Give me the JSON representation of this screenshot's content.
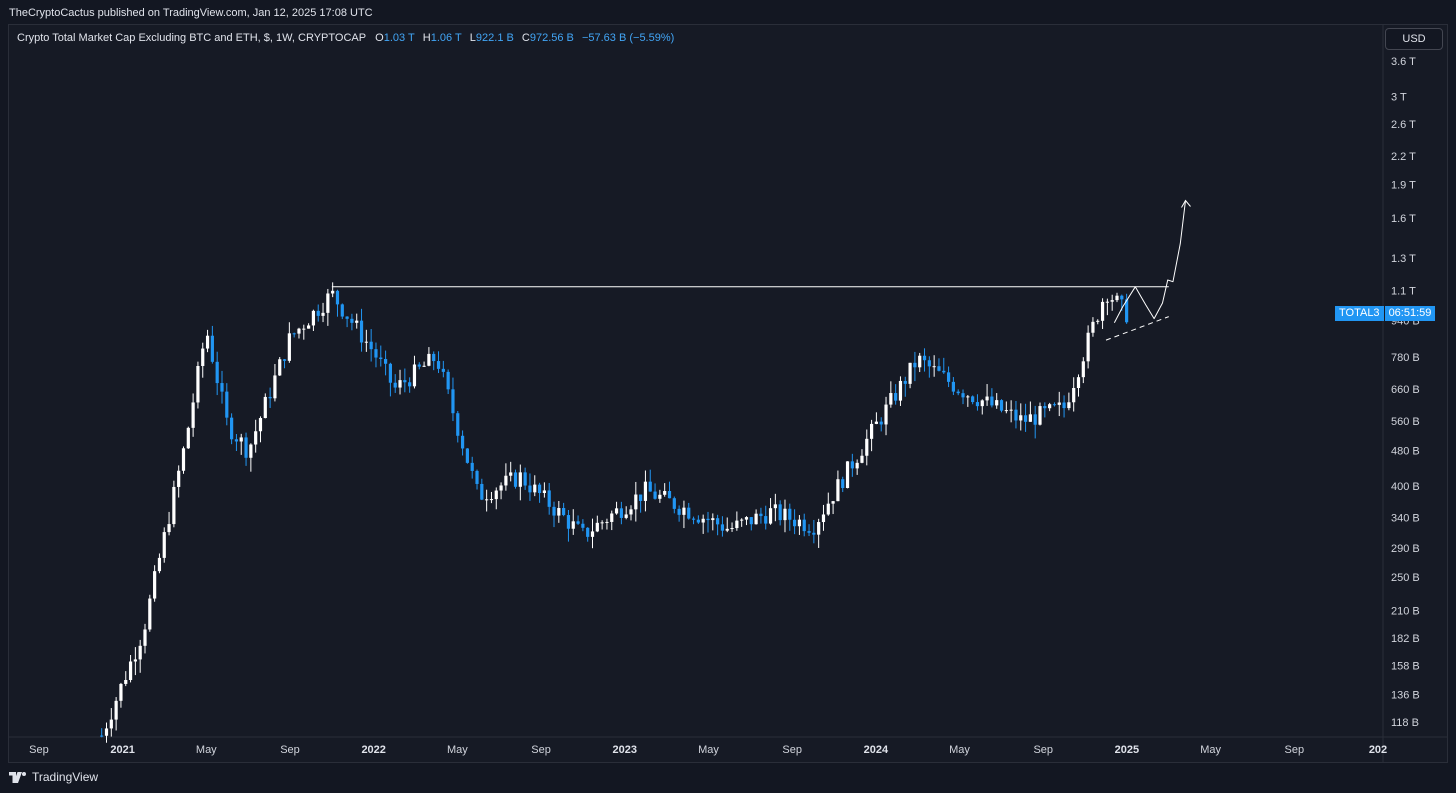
{
  "header": {
    "published": "TheCryptoCactus published on TradingView.com, Jan 12, 2025 17:08 UTC"
  },
  "legend": {
    "symbol": "Crypto Total Market Cap Excluding BTC and ETH, $, 1W, CRYPTOCAP",
    "o_label": "O",
    "o_value": "1.03 T",
    "h_label": "H",
    "h_value": "1.06 T",
    "l_label": "L",
    "l_value": "922.1 B",
    "c_label": "C",
    "c_value": "972.56 B",
    "change": "−57.63 B (−5.59%)"
  },
  "currency_button": "USD",
  "price_tag": {
    "ticker": "TOTAL3",
    "countdown": "06:51:59"
  },
  "footer": {
    "brand": "TradingView"
  },
  "colors": {
    "background": "#161a25",
    "up": "#ffffff",
    "down": "#2196f3",
    "accent": "#2196f3"
  },
  "chart_data": {
    "type": "candlestick",
    "title": "Crypto Total Market Cap Excluding BTC and ETH, $, 1W, CRYPTOCAP",
    "scale": "log",
    "y_ticks": [
      "3.6 T",
      "3 T",
      "2.6 T",
      "2.2 T",
      "1.9 T",
      "1.6 T",
      "1.3 T",
      "1.1 T",
      "940 B",
      "780 B",
      "660 B",
      "560 B",
      "480 B",
      "400 B",
      "340 B",
      "290 B",
      "250 B",
      "210 B",
      "182 B",
      "158 B",
      "136 B",
      "118 B"
    ],
    "x_ticks": [
      {
        "label": "Sep",
        "bold": false
      },
      {
        "label": "2021",
        "bold": true
      },
      {
        "label": "May",
        "bold": false
      },
      {
        "label": "Sep",
        "bold": false
      },
      {
        "label": "2022",
        "bold": true
      },
      {
        "label": "May",
        "bold": false
      },
      {
        "label": "Sep",
        "bold": false
      },
      {
        "label": "2023",
        "bold": true
      },
      {
        "label": "May",
        "bold": false
      },
      {
        "label": "Sep",
        "bold": false
      },
      {
        "label": "2024",
        "bold": true
      },
      {
        "label": "May",
        "bold": false
      },
      {
        "label": "Sep",
        "bold": false
      },
      {
        "label": "2025",
        "bold": true
      },
      {
        "label": "May",
        "bold": false
      },
      {
        "label": "Sep",
        "bold": false
      },
      {
        "label": "202",
        "bold": true
      }
    ],
    "time_range": [
      "2020-08",
      "2026-01"
    ],
    "approx_closes": [
      {
        "date": "2020-12",
        "value": 110
      },
      {
        "date": "2021-02",
        "value": 190
      },
      {
        "date": "2021-04",
        "value": 500
      },
      {
        "date": "2021-05",
        "value": 900
      },
      {
        "date": "2021-06",
        "value": 550
      },
      {
        "date": "2021-07",
        "value": 480
      },
      {
        "date": "2021-09",
        "value": 860
      },
      {
        "date": "2021-11",
        "value": 1080
      },
      {
        "date": "2022-01",
        "value": 800
      },
      {
        "date": "2022-02",
        "value": 660
      },
      {
        "date": "2022-04",
        "value": 780
      },
      {
        "date": "2022-06",
        "value": 380
      },
      {
        "date": "2022-08",
        "value": 420
      },
      {
        "date": "2022-11",
        "value": 310
      },
      {
        "date": "2023-02",
        "value": 390
      },
      {
        "date": "2023-06",
        "value": 320
      },
      {
        "date": "2023-08",
        "value": 350
      },
      {
        "date": "2023-10",
        "value": 325
      },
      {
        "date": "2023-12",
        "value": 460
      },
      {
        "date": "2024-03",
        "value": 770
      },
      {
        "date": "2024-05",
        "value": 660
      },
      {
        "date": "2024-08",
        "value": 560
      },
      {
        "date": "2024-10",
        "value": 600
      },
      {
        "date": "2024-12",
        "value": 1100
      },
      {
        "date": "2025-01",
        "value": 972.56
      }
    ],
    "annotations": [
      {
        "type": "horizontal-resistance",
        "value_B": 1120
      },
      {
        "type": "dashed-trendline-support"
      },
      {
        "type": "projection-arrow",
        "target_B": 1800
      }
    ]
  }
}
